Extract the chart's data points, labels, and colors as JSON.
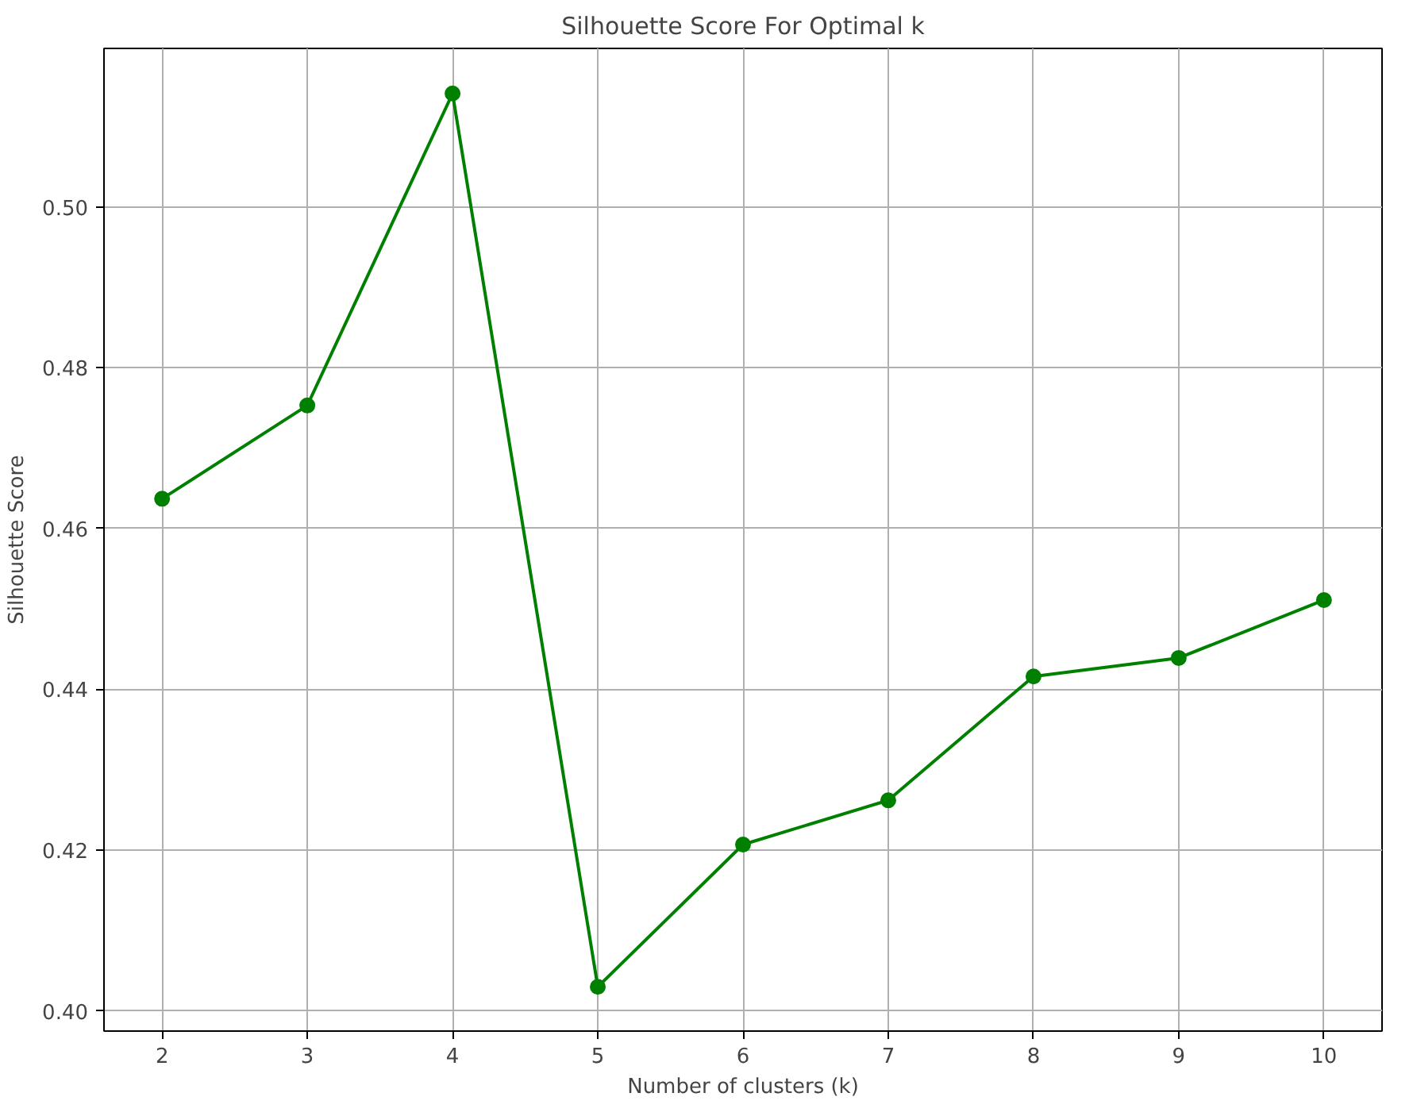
{
  "chart_data": {
    "type": "line",
    "title": "Silhouette Score For Optimal k",
    "xlabel": "Number of clusters (k)",
    "ylabel": "Silhouette Score",
    "x": [
      2,
      3,
      4,
      5,
      6,
      7,
      8,
      9,
      10
    ],
    "series": [
      {
        "color": "#008000",
        "values": [
          0.4637,
          0.4753,
          0.5141,
          0.403,
          0.4207,
          0.4262,
          0.4416,
          0.4439,
          0.4511
        ]
      }
    ],
    "xlim": [
      1.6,
      10.4
    ],
    "ylim": [
      0.3975,
      0.5197
    ],
    "xticks": [
      2,
      3,
      4,
      5,
      6,
      7,
      8,
      9,
      10
    ],
    "yticks": [
      {
        "value": 0.4,
        "label": "0.40"
      },
      {
        "value": 0.42,
        "label": "0.42"
      },
      {
        "value": 0.44,
        "label": "0.44"
      },
      {
        "value": 0.46,
        "label": "0.46"
      },
      {
        "value": 0.48,
        "label": "0.48"
      },
      {
        "value": 0.5,
        "label": "0.50"
      }
    ],
    "grid": true,
    "marker": "circle",
    "line_style": "solid"
  }
}
